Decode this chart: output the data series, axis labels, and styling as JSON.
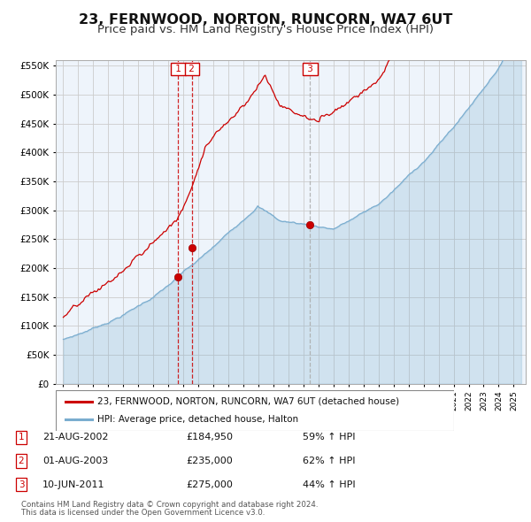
{
  "title": "23, FERNWOOD, NORTON, RUNCORN, WA7 6UT",
  "subtitle": "Price paid vs. HM Land Registry's House Price Index (HPI)",
  "title_fontsize": 11.5,
  "subtitle_fontsize": 9.5,
  "ylim": [
    0,
    560000
  ],
  "yticks": [
    0,
    50000,
    100000,
    150000,
    200000,
    250000,
    300000,
    350000,
    400000,
    450000,
    500000,
    550000
  ],
  "legend_entry1": "23, FERNWOOD, NORTON, RUNCORN, WA7 6UT (detached house)",
  "legend_entry2": "HPI: Average price, detached house, Halton",
  "sale_color": "#cc0000",
  "hpi_color": "#7aadcf",
  "hpi_fill_color": "#ddeeff",
  "transactions": [
    {
      "label": "1",
      "date": "21-AUG-2002",
      "price": 184950,
      "pct": "59%",
      "dir": "↑",
      "year": 2002.64
    },
    {
      "label": "2",
      "date": "01-AUG-2003",
      "price": 235000,
      "pct": "62%",
      "dir": "↑",
      "year": 2003.58
    },
    {
      "label": "3",
      "date": "10-JUN-2011",
      "price": 275000,
      "pct": "44%",
      "dir": "↑",
      "year": 2011.44
    }
  ],
  "footer1": "Contains HM Land Registry data © Crown copyright and database right 2024.",
  "footer2": "This data is licensed under the Open Government Licence v3.0.",
  "background_color": "#ffffff",
  "grid_color": "#cccccc",
  "chart_bg_color": "#eef4fb"
}
